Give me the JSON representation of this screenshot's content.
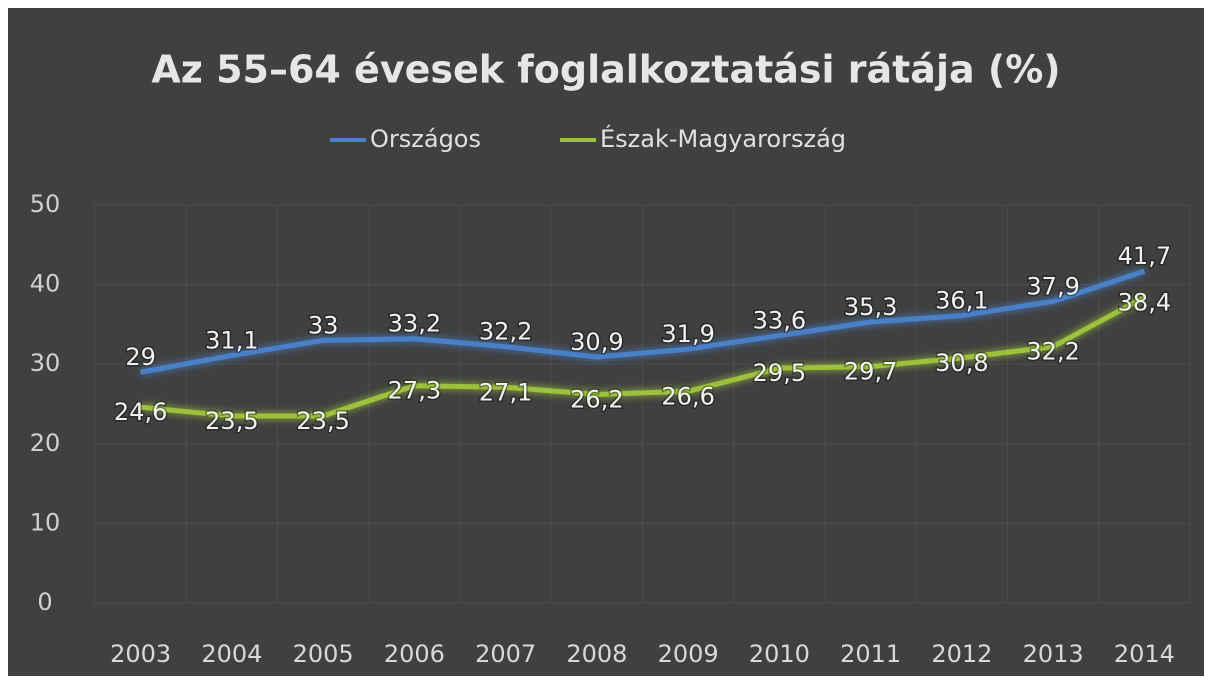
{
  "chart_data": {
    "type": "line",
    "title": "Az 55–64 évesek foglalkoztatási rátája (%)",
    "categories": [
      "2003",
      "2004",
      "2005",
      "2006",
      "2007",
      "2008",
      "2009",
      "2010",
      "2011",
      "2012",
      "2013",
      "2014"
    ],
    "series": [
      {
        "name": "Országos",
        "color": "#4a80c8",
        "values": [
          29,
          31.1,
          33,
          33.2,
          32.2,
          30.9,
          31.9,
          33.6,
          35.3,
          36.1,
          37.9,
          41.7
        ],
        "value_labels": [
          "29",
          "31,1",
          "33",
          "33,2",
          "32,2",
          "30,9",
          "31,9",
          "33,6",
          "35,3",
          "36,1",
          "37,9",
          "41,7"
        ]
      },
      {
        "name": "Észak-Magyarország",
        "color": "#9dc13c",
        "values": [
          24.6,
          23.5,
          23.5,
          27.3,
          27.1,
          26.2,
          26.6,
          29.5,
          29.7,
          30.8,
          32.2,
          38.4
        ],
        "value_labels": [
          "24,6",
          "23,5",
          "23,5",
          "27,3",
          "27,1",
          "26,2",
          "26,6",
          "29,5",
          "29,7",
          "30,8",
          "32,2",
          "38,4"
        ]
      }
    ],
    "ylim": [
      0,
      50
    ],
    "yticks": [
      0,
      10,
      20,
      30,
      40,
      50
    ],
    "grid": true,
    "legend": "top"
  }
}
